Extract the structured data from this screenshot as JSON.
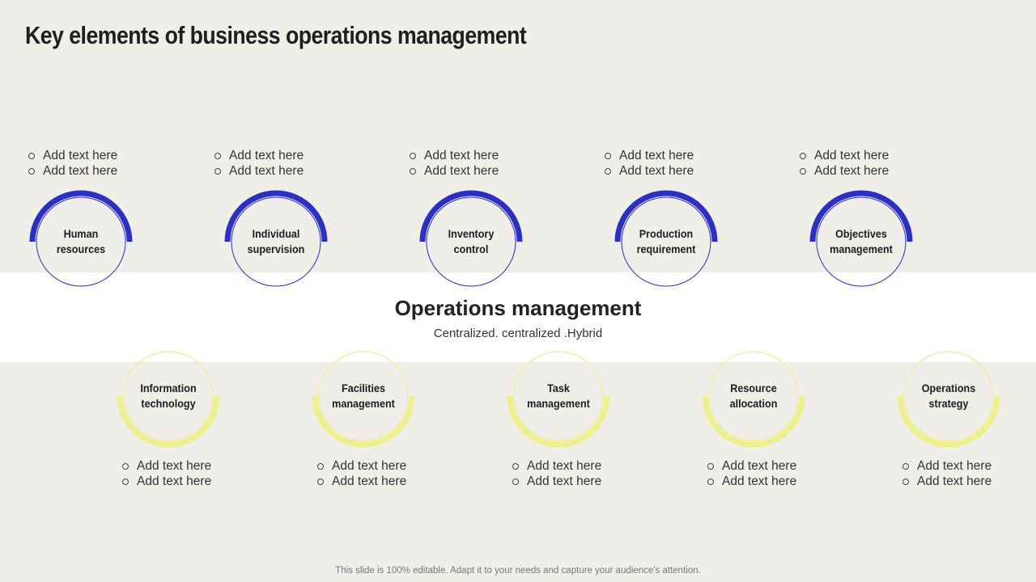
{
  "title": "Key elements of business operations management",
  "center": {
    "title": "Operations management",
    "subtitle": "Centralized. centralized .Hybrid"
  },
  "colors": {
    "top_arc": "#2b2fc2",
    "top_ring": "#2b2fc2",
    "bottom_arc": "#eef08e",
    "bottom_ring": "#eeeea8"
  },
  "top_nodes": [
    {
      "label": "Human resources",
      "bullets": [
        "Add text here",
        "Add text here"
      ]
    },
    {
      "label": "Individual supervision",
      "bullets": [
        "Add text here",
        "Add text here"
      ]
    },
    {
      "label": "Inventory control",
      "bullets": [
        "Add text here",
        "Add text here"
      ]
    },
    {
      "label": "Production requirement",
      "bullets": [
        "Add text here",
        "Add text here"
      ]
    },
    {
      "label": "Objectives management",
      "bullets": [
        "Add text here",
        "Add text here"
      ]
    }
  ],
  "bottom_nodes": [
    {
      "label": "Information technology",
      "bullets": [
        "Add text here",
        "Add text here"
      ]
    },
    {
      "label": "Facilities management",
      "bullets": [
        "Add text here",
        "Add text here"
      ]
    },
    {
      "label": "Task management",
      "bullets": [
        "Add text here",
        "Add text here"
      ]
    },
    {
      "label": "Resource allocation",
      "bullets": [
        "Add text here",
        "Add text here"
      ]
    },
    {
      "label": "Operations strategy",
      "bullets": [
        "Add text here",
        "Add text here"
      ]
    }
  ],
  "footer": "This slide is 100% editable. Adapt it to your needs and capture your audience's attention."
}
